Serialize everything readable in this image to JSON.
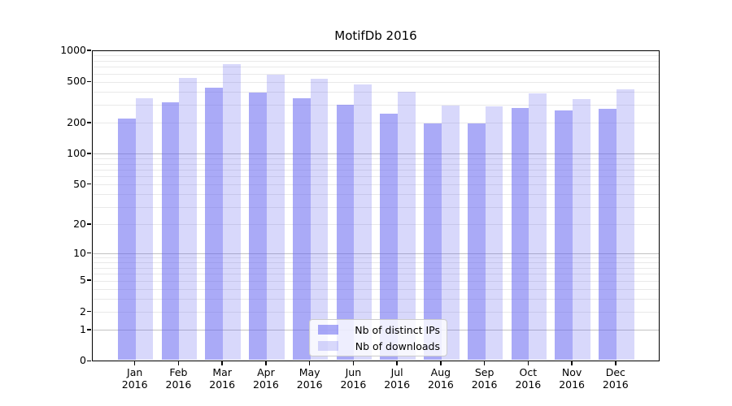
{
  "title": "MotifDb 2016",
  "colors": {
    "bar_dark": "rgba(100,100,240,0.55)",
    "bar_light": "rgba(100,100,240,0.25)",
    "grid_major": "#c2c2c2",
    "grid_minor": "#e9e9e9",
    "axis": "#000000"
  },
  "legend": {
    "items": [
      {
        "label": "Nb of distinct IPs",
        "swatch": "bar_dark"
      },
      {
        "label": "Nb of downloads",
        "swatch": "bar_light"
      }
    ]
  },
  "chart_data": {
    "type": "bar",
    "title": "MotifDb 2016",
    "yscale": "log1p",
    "ylim": [
      0,
      1000
    ],
    "grid": "on",
    "legend_position": "lower-center-inside",
    "categories": [
      "Jan",
      "Feb",
      "Mar",
      "Apr",
      "May",
      "Jun",
      "Jul",
      "Aug",
      "Sep",
      "Oct",
      "Nov",
      "Dec"
    ],
    "x_year": "2016",
    "yticks": [
      0,
      1,
      2,
      5,
      10,
      20,
      50,
      100,
      200,
      500,
      1000
    ],
    "minor_gridline_values": [
      3,
      4,
      6,
      7,
      8,
      9,
      30,
      40,
      60,
      70,
      80,
      90,
      300,
      400,
      600,
      700,
      800,
      900
    ],
    "series": [
      {
        "name": "Nb of distinct IPs",
        "values": [
          221,
          322,
          439,
          399,
          351,
          304,
          249,
          201,
          199,
          283,
          267,
          277
        ]
      },
      {
        "name": "Nb of downloads",
        "values": [
          352,
          549,
          746,
          590,
          542,
          472,
          407,
          298,
          293,
          387,
          341,
          431
        ]
      }
    ]
  }
}
